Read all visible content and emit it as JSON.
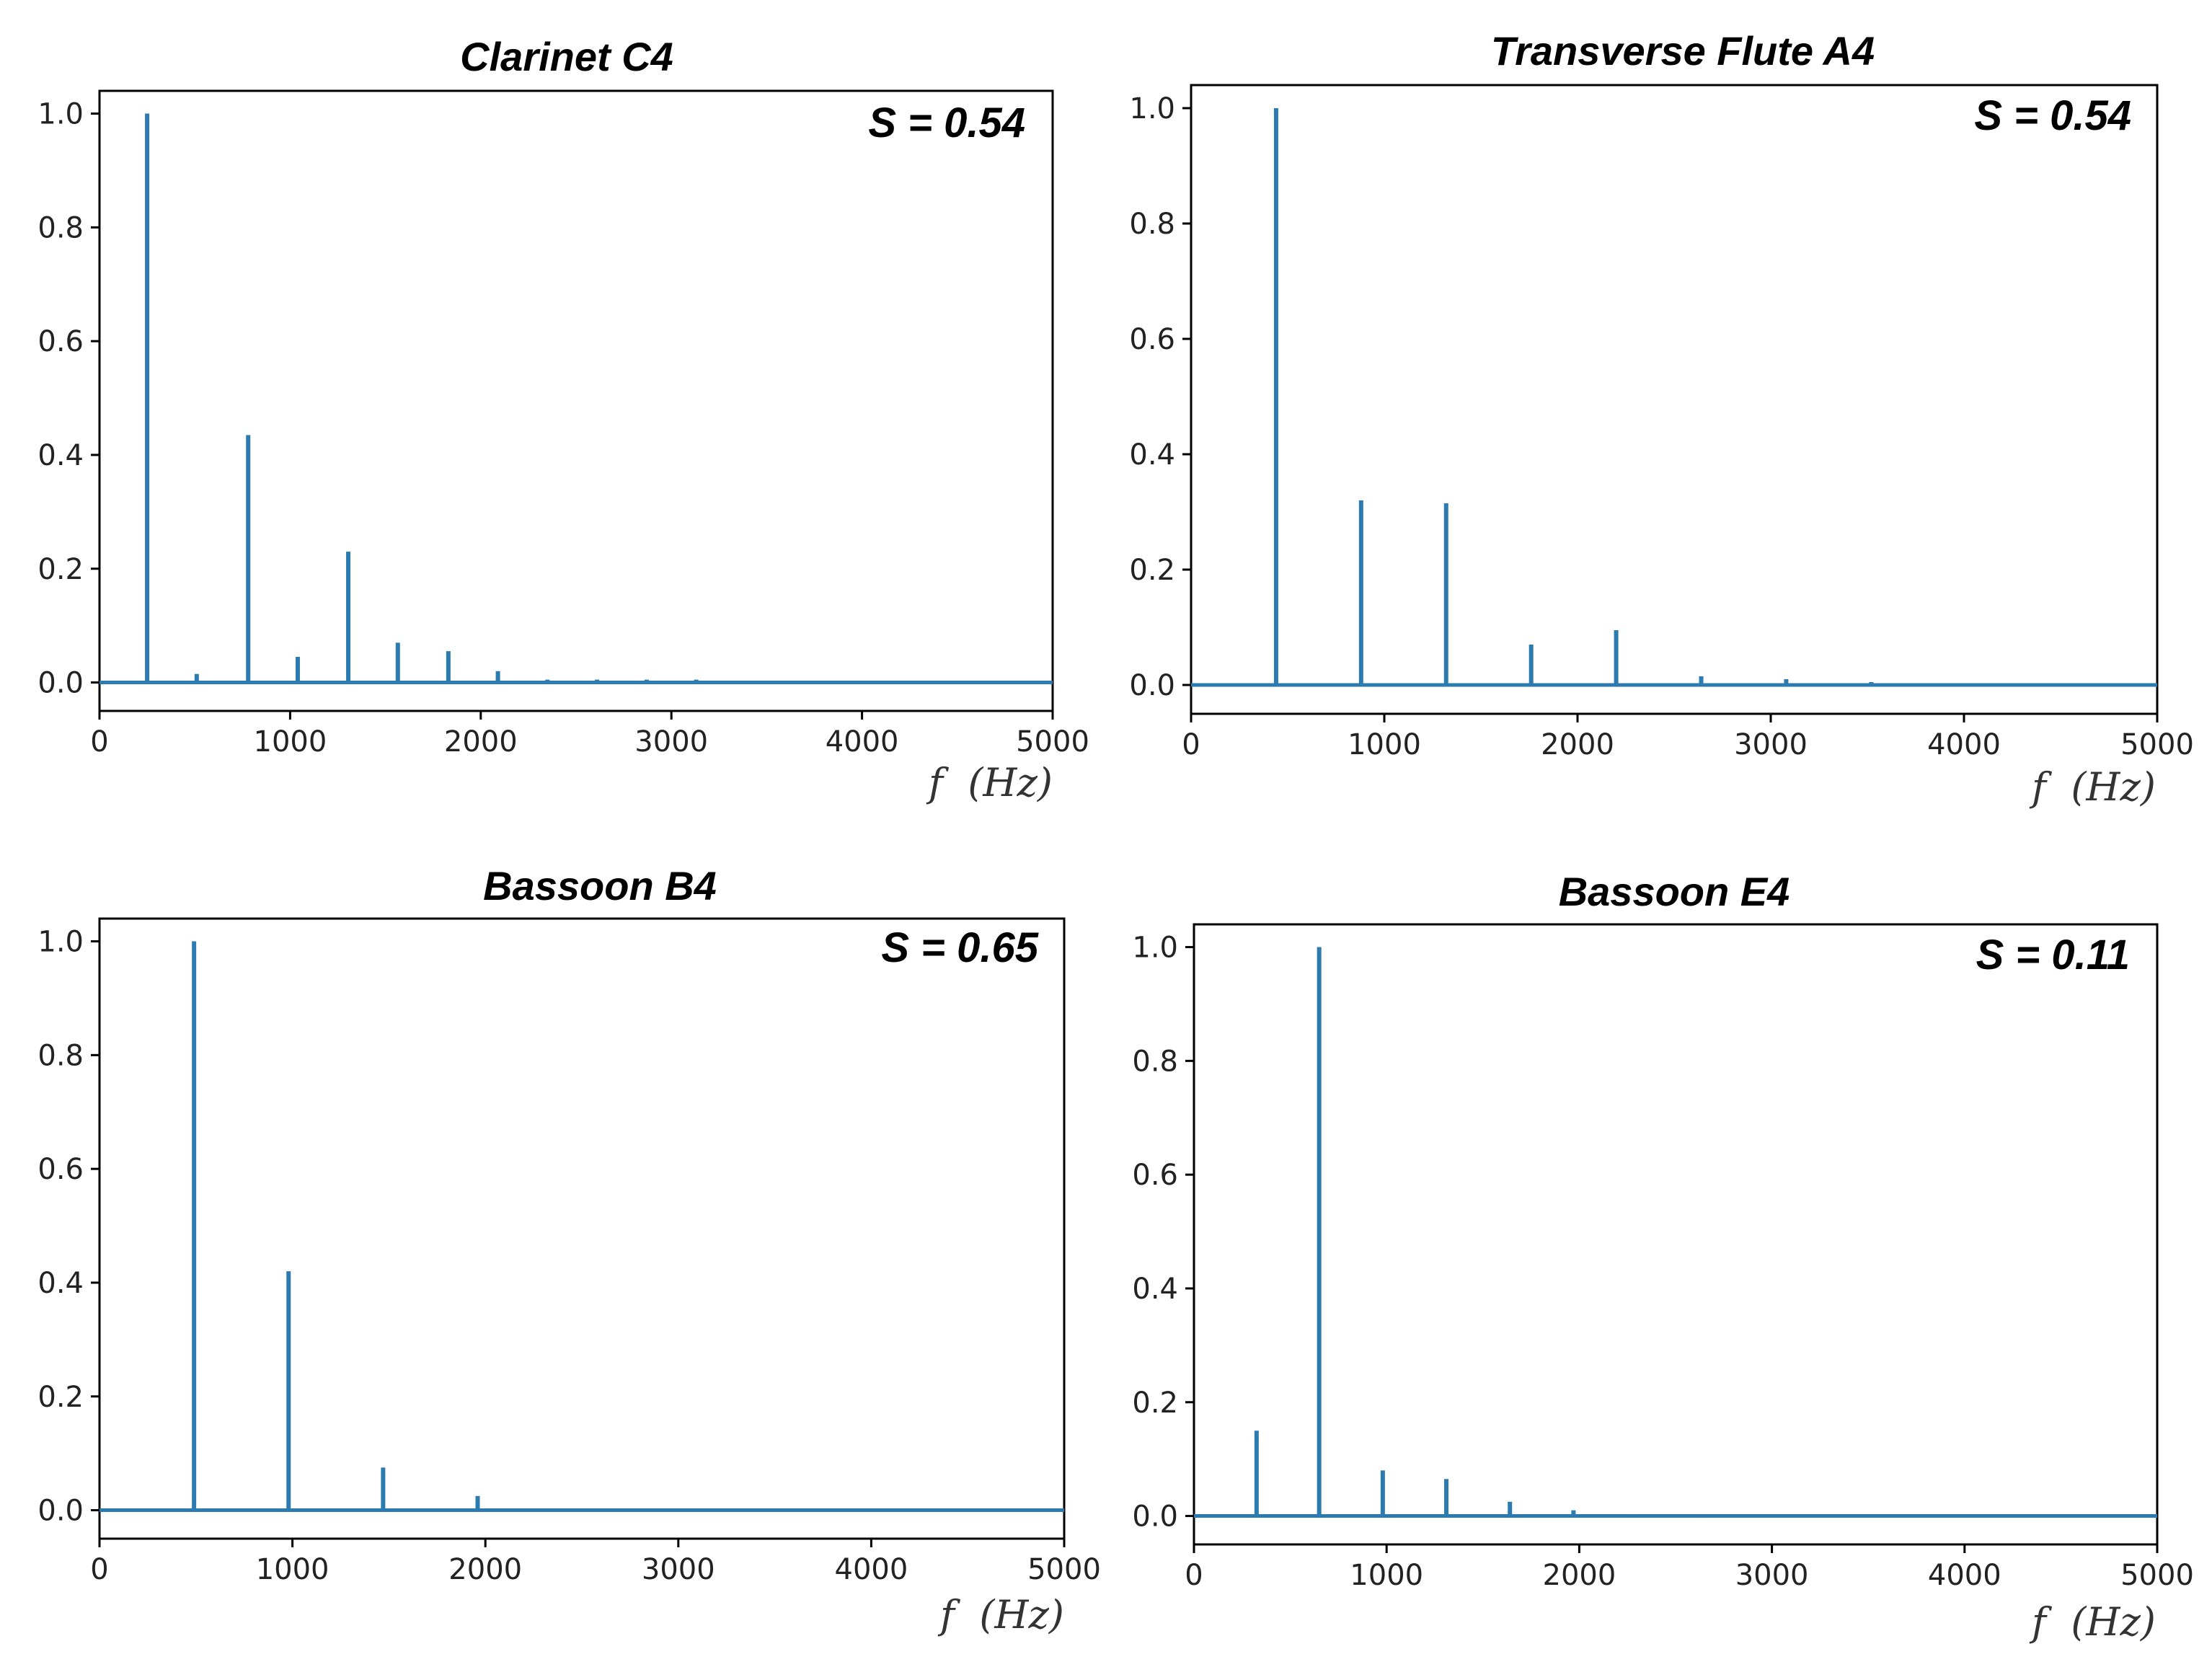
{
  "chart_data": [
    {
      "type": "line",
      "title": "Clarinet C4",
      "annotation": "S = 0.54",
      "xlabel": "f  (Hz)",
      "ylabel": "",
      "xlim": [
        0,
        5000
      ],
      "ylim": [
        -0.05,
        1.04
      ],
      "xticks": [
        0,
        1000,
        2000,
        3000,
        4000,
        5000
      ],
      "yticks": [
        0.0,
        0.2,
        0.4,
        0.6,
        0.8,
        1.0
      ],
      "series_color": "#2c7bb0",
      "peaks": [
        {
          "x": 250,
          "y": 1.0
        },
        {
          "x": 510,
          "y": 0.015
        },
        {
          "x": 780,
          "y": 0.435
        },
        {
          "x": 1040,
          "y": 0.045
        },
        {
          "x": 1305,
          "y": 0.23
        },
        {
          "x": 1565,
          "y": 0.07
        },
        {
          "x": 1830,
          "y": 0.055
        },
        {
          "x": 2090,
          "y": 0.02
        },
        {
          "x": 2350,
          "y": 0.005
        },
        {
          "x": 2610,
          "y": 0.005
        },
        {
          "x": 2870,
          "y": 0.005
        },
        {
          "x": 3130,
          "y": 0.005
        }
      ]
    },
    {
      "type": "line",
      "title": "Transverse Flute A4",
      "annotation": "S = 0.54",
      "xlabel": "f  (Hz)",
      "ylabel": "",
      "xlim": [
        0,
        5000
      ],
      "ylim": [
        -0.05,
        1.04
      ],
      "xticks": [
        0,
        1000,
        2000,
        3000,
        4000,
        5000
      ],
      "yticks": [
        0.0,
        0.2,
        0.4,
        0.6,
        0.8,
        1.0
      ],
      "series_color": "#2c7bb0",
      "peaks": [
        {
          "x": 440,
          "y": 1.0
        },
        {
          "x": 880,
          "y": 0.32
        },
        {
          "x": 1320,
          "y": 0.315
        },
        {
          "x": 1760,
          "y": 0.07
        },
        {
          "x": 2200,
          "y": 0.095
        },
        {
          "x": 2640,
          "y": 0.015
        },
        {
          "x": 3080,
          "y": 0.01
        },
        {
          "x": 3520,
          "y": 0.005
        }
      ]
    },
    {
      "type": "line",
      "title": "Bassoon B4",
      "annotation": "S = 0.65",
      "xlabel": "f  (Hz)",
      "ylabel": "",
      "xlim": [
        0,
        5000
      ],
      "ylim": [
        -0.05,
        1.04
      ],
      "xticks": [
        0,
        1000,
        2000,
        3000,
        4000,
        5000
      ],
      "yticks": [
        0.0,
        0.2,
        0.4,
        0.6,
        0.8,
        1.0
      ],
      "series_color": "#2c7bb0",
      "peaks": [
        {
          "x": 490,
          "y": 1.0
        },
        {
          "x": 980,
          "y": 0.42
        },
        {
          "x": 1470,
          "y": 0.075
        },
        {
          "x": 1960,
          "y": 0.025
        },
        {
          "x": 2950,
          "y": 0.003
        },
        {
          "x": 3450,
          "y": 0.003
        }
      ]
    },
    {
      "type": "line",
      "title": "Bassoon E4",
      "annotation": "S = 0.11",
      "xlabel": "f  (Hz)",
      "ylabel": "",
      "xlim": [
        0,
        5000
      ],
      "ylim": [
        -0.05,
        1.04
      ],
      "xticks": [
        0,
        1000,
        2000,
        3000,
        4000,
        5000
      ],
      "yticks": [
        0.0,
        0.2,
        0.4,
        0.6,
        0.8,
        1.0
      ],
      "series_color": "#2c7bb0",
      "peaks": [
        {
          "x": 325,
          "y": 0.15
        },
        {
          "x": 650,
          "y": 1.0
        },
        {
          "x": 980,
          "y": 0.08
        },
        {
          "x": 1310,
          "y": 0.065
        },
        {
          "x": 1640,
          "y": 0.025
        },
        {
          "x": 1970,
          "y": 0.01
        },
        {
          "x": 2300,
          "y": 0.003
        },
        {
          "x": 2640,
          "y": 0.003
        }
      ]
    }
  ]
}
